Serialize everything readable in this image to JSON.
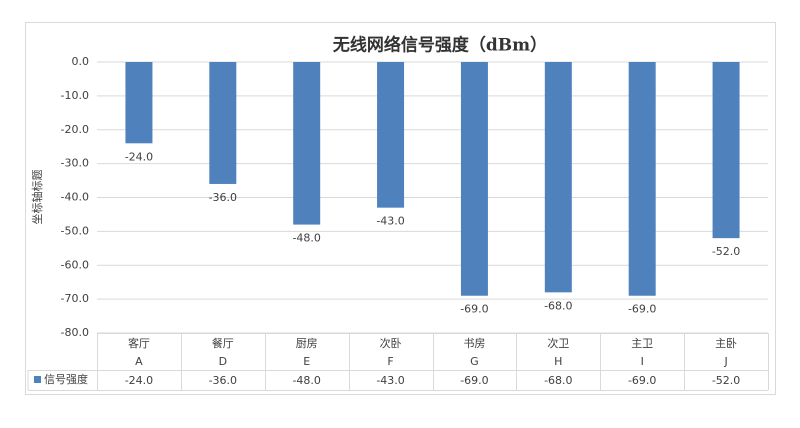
{
  "chart_data": {
    "type": "bar",
    "title": "无线网络信号强度（dBm）",
    "y_label": "坐标轴标题",
    "categories": [
      "客厅",
      "餐厅",
      "厨房",
      "次卧",
      "书房",
      "次卫",
      "主卫",
      "主卧"
    ],
    "subcategories": [
      "A",
      "D",
      "E",
      "F",
      "G",
      "H",
      "I",
      "J"
    ],
    "series": [
      {
        "name": "信号强度",
        "color": "#4f81bd",
        "values": [
          -24,
          -36,
          -48,
          -43,
          -69,
          -68,
          -69,
          -52
        ],
        "value_labels": [
          "-24.0",
          "-36.0",
          "-48.0",
          "-43.0",
          "-69.0",
          "-68.0",
          "-69.0",
          "-52.0"
        ]
      }
    ],
    "ylim": [
      -80,
      0
    ],
    "yticks": [
      {
        "value": 0,
        "label": "0.0"
      },
      {
        "value": -10,
        "label": "-10.0"
      },
      {
        "value": -20,
        "label": "-20.0"
      },
      {
        "value": -30,
        "label": "-30.0"
      },
      {
        "value": -40,
        "label": "-40.0"
      },
      {
        "value": -50,
        "label": "-50.0"
      },
      {
        "value": -60,
        "label": "-60.0"
      },
      {
        "value": -70,
        "label": "-70.0"
      },
      {
        "value": -80,
        "label": "-80.0"
      }
    ],
    "grid": true
  }
}
